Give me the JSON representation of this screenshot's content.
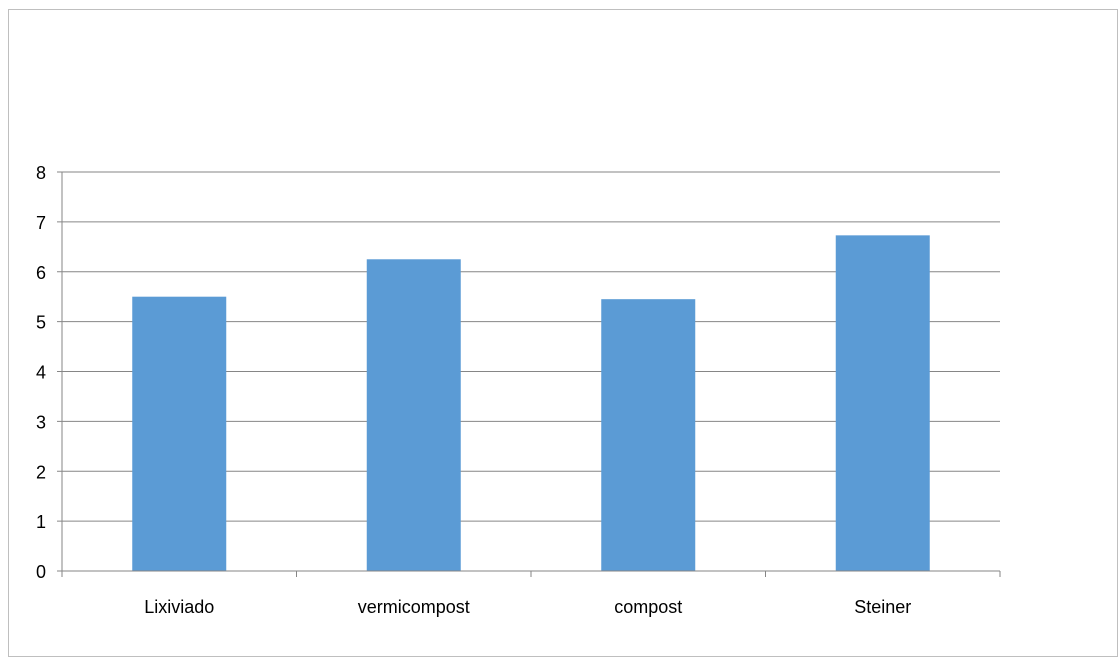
{
  "chart_data": {
    "type": "bar",
    "title": "",
    "xlabel": "",
    "ylabel": "",
    "categories": [
      "Lixiviado",
      "vermicompost",
      "compost",
      "Steiner"
    ],
    "values": [
      5.5,
      6.25,
      5.45,
      6.73
    ],
    "ylim": [
      0,
      8
    ],
    "yticks": [
      "0",
      "1",
      "2",
      "3",
      "4",
      "5",
      "6",
      "7",
      "8"
    ],
    "grid": true,
    "legend": "none",
    "colors": {
      "bar": "#5b9bd5",
      "grid": "#868686",
      "axis": "#868686",
      "border": "#bfbfbf"
    }
  }
}
